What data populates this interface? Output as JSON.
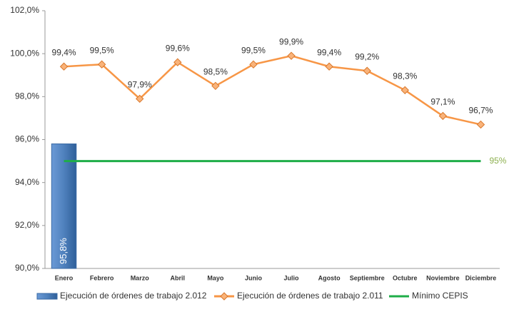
{
  "chart_data": {
    "type": "combo",
    "categories": [
      "Enero",
      "Febrero",
      "Marzo",
      "Abril",
      "Mayo",
      "Junio",
      "Julio",
      "Agosto",
      "Septiembre",
      "Octubre",
      "Noviembre",
      "Diciembre"
    ],
    "series": [
      {
        "name": "Ejecución de órdenes de trabajo 2.012",
        "type": "bar",
        "color": "#4f81bd",
        "values": [
          95.8,
          null,
          null,
          null,
          null,
          null,
          null,
          null,
          null,
          null,
          null,
          null
        ],
        "value_labels": [
          "95,8%",
          null,
          null,
          null,
          null,
          null,
          null,
          null,
          null,
          null,
          null,
          null
        ]
      },
      {
        "name": "Ejecución de órdenes de trabajo 2.011",
        "type": "line",
        "color": "#f79646",
        "values": [
          99.4,
          99.5,
          97.9,
          99.6,
          98.5,
          99.5,
          99.9,
          99.4,
          99.2,
          98.3,
          97.1,
          96.7
        ],
        "value_labels": [
          "99,4%",
          "99,5%",
          "97,9%",
          "99,6%",
          "98,5%",
          "99,5%",
          "99,9%",
          "99,4%",
          "99,2%",
          "98,3%",
          "97,1%",
          "96,7%"
        ]
      },
      {
        "name": "Mínimo CEPIS",
        "type": "line",
        "color": "#1fae48",
        "markers": false,
        "values": [
          95,
          95,
          95,
          95,
          95,
          95,
          95,
          95,
          95,
          95,
          95,
          95
        ],
        "label": "95%",
        "label_color": "#8db050"
      }
    ],
    "ylim": [
      90,
      102
    ],
    "yticks": [
      {
        "value": 90,
        "label": "90,0%"
      },
      {
        "value": 92,
        "label": "92,0%"
      },
      {
        "value": 94,
        "label": "94,0%"
      },
      {
        "value": 96,
        "label": "96,0%"
      },
      {
        "value": 98,
        "label": "98,0%"
      },
      {
        "value": 100,
        "label": "100,0%"
      },
      {
        "value": 102,
        "label": "102,0%"
      }
    ],
    "grid": false,
    "legend": "bottom"
  }
}
